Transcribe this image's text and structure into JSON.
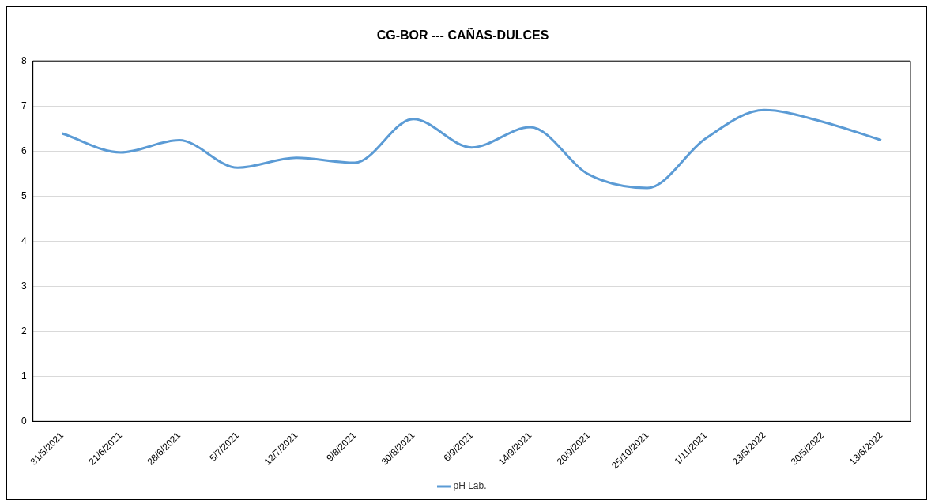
{
  "chart_data": {
    "type": "line",
    "title": "CG-BOR --- CAÑAS-DULCES",
    "categories": [
      "31/5/2021",
      "21/6/2021",
      "28/6/2021",
      "5/7/2021",
      "12/7/2021",
      "9/8/2021",
      "30/8/2021",
      "6/9/2021",
      "14/9/2021",
      "20/9/2021",
      "25/10/2021",
      "1/11/2021",
      "23/5/2022",
      "30/5/2022",
      "13/6/2022"
    ],
    "series": [
      {
        "name": "pH Lab.",
        "color": "#5b9bd5",
        "values": [
          6.39,
          5.97,
          6.24,
          5.63,
          5.85,
          5.74,
          6.71,
          6.08,
          6.53,
          5.48,
          5.18,
          6.28,
          6.91,
          6.65,
          6.24
        ]
      }
    ],
    "ylim": [
      0,
      8
    ],
    "yticks": [
      0,
      1,
      2,
      3,
      4,
      5,
      6,
      7,
      8
    ],
    "grid": "y",
    "legend": "bottom",
    "marker": "none",
    "line_style": "solid"
  }
}
